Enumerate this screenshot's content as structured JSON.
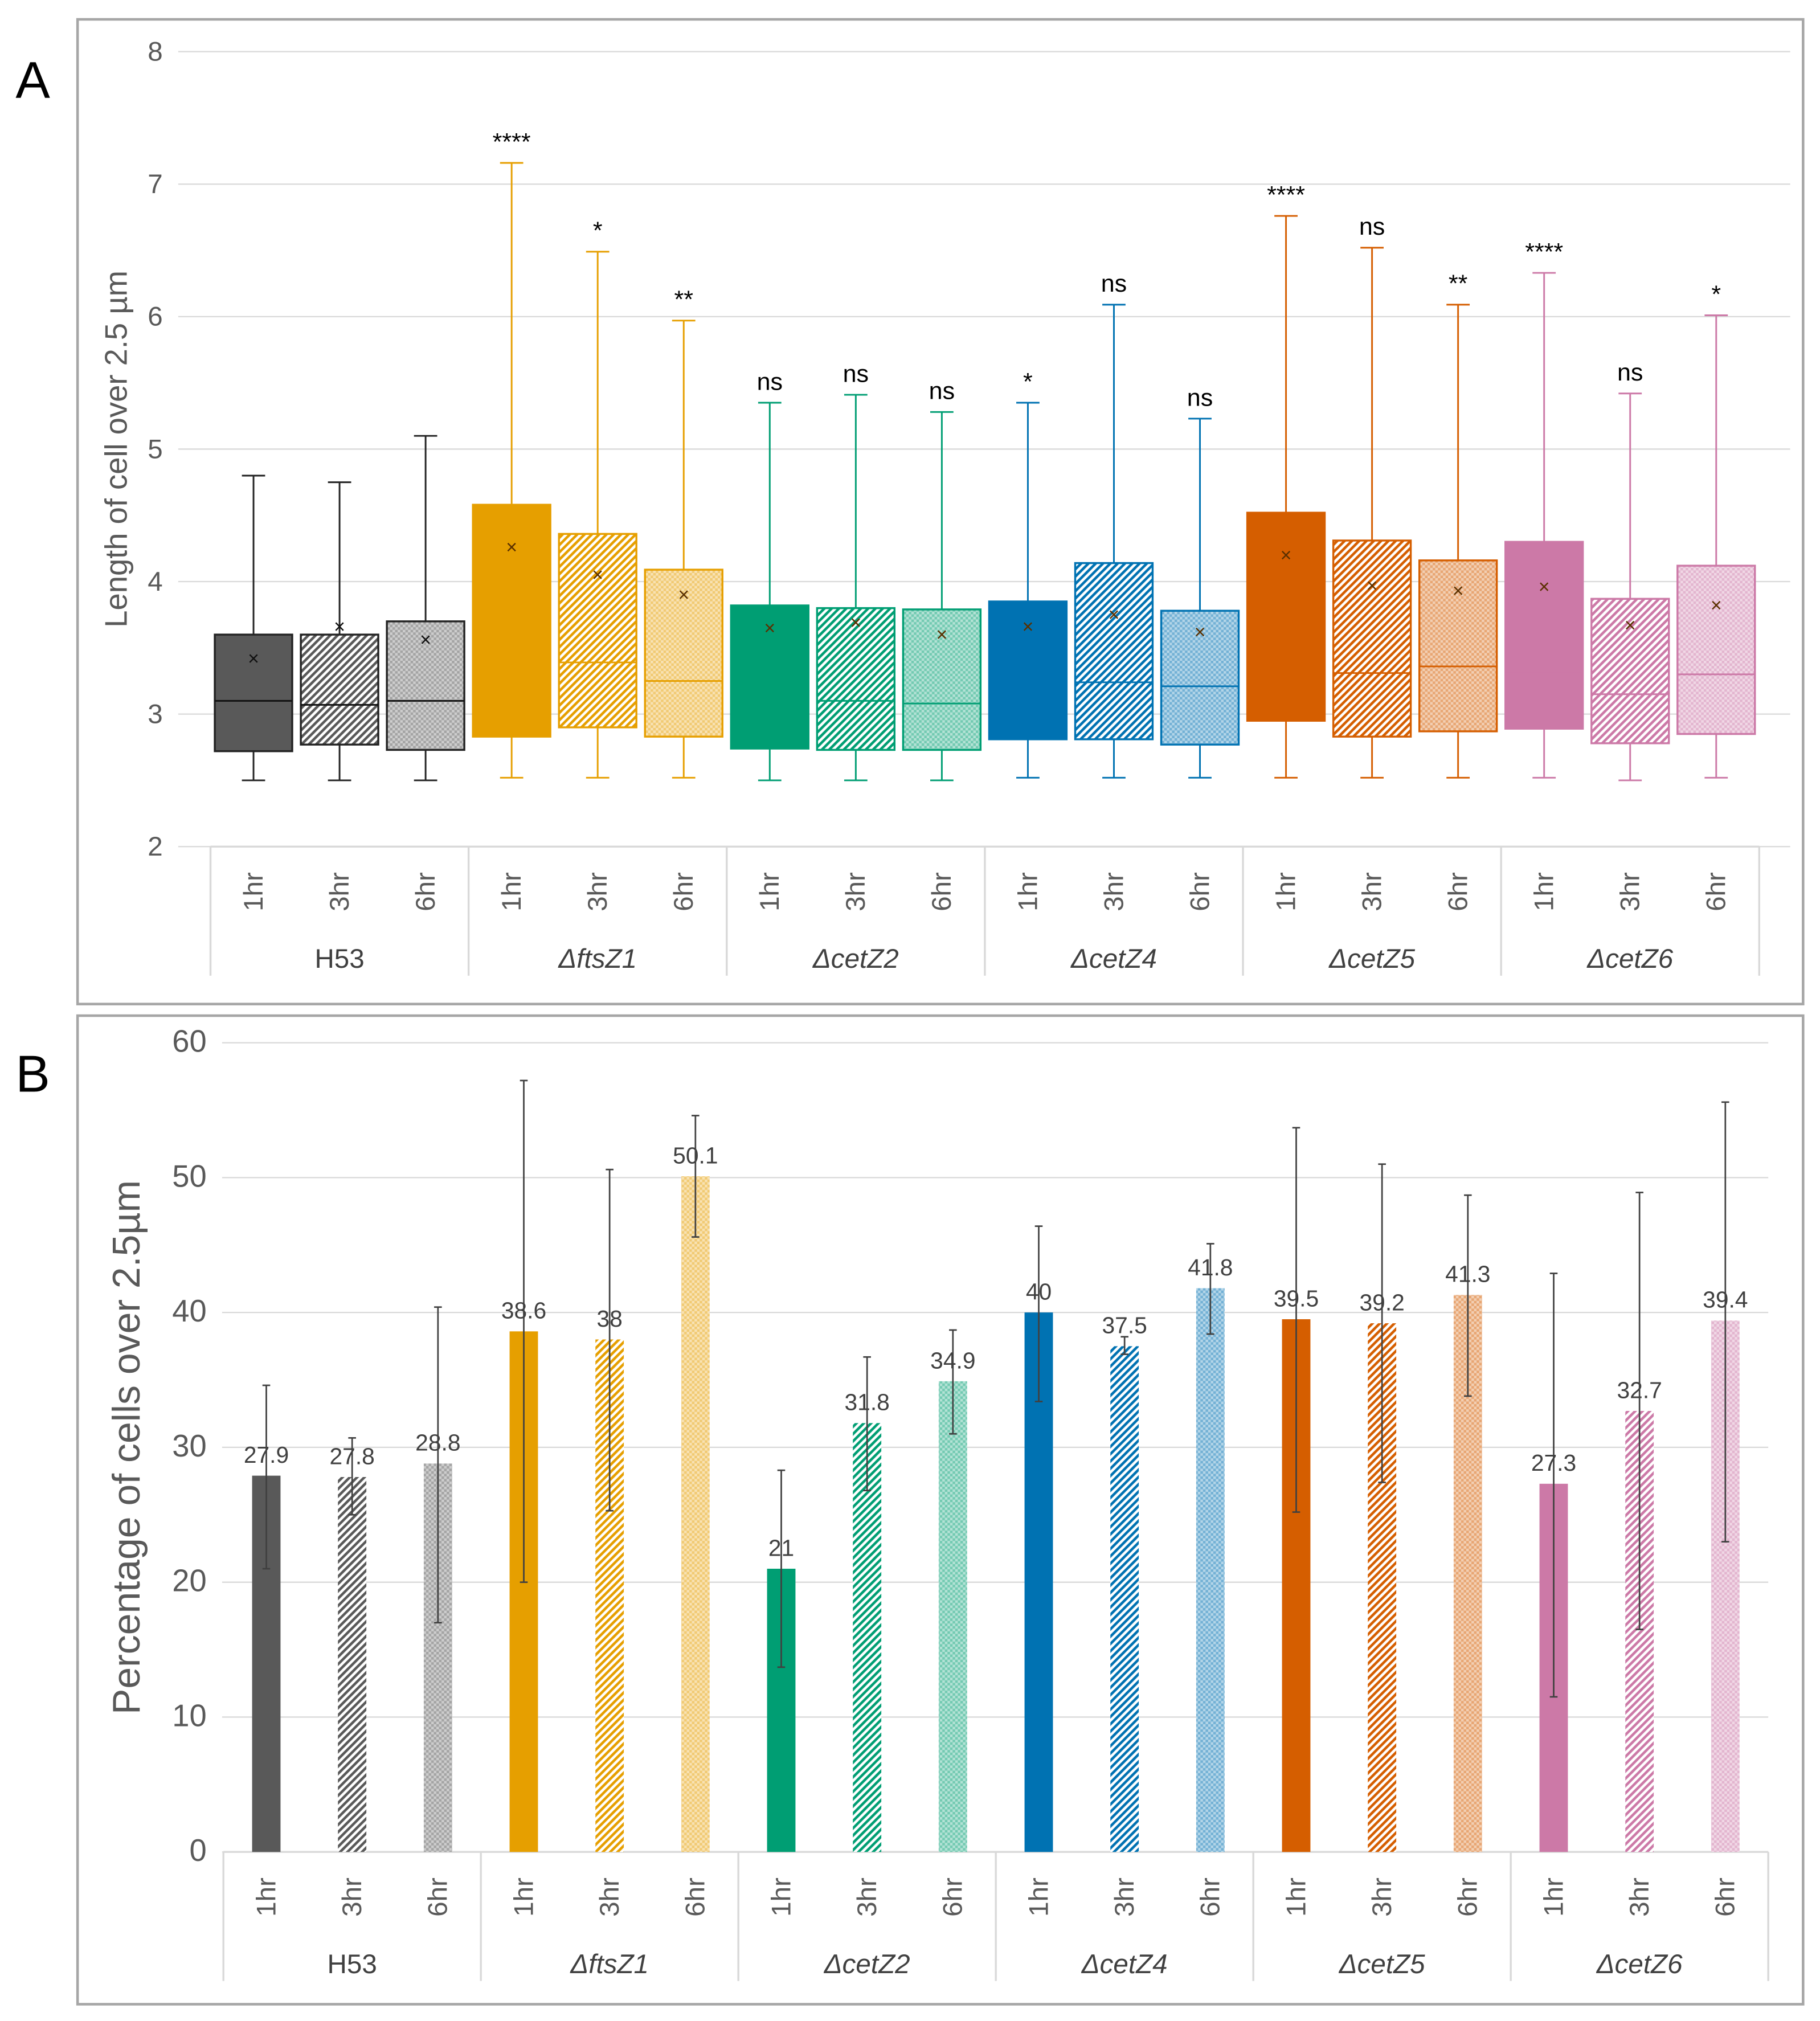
{
  "chart_data": [
    {
      "type": "box",
      "panel_label": "A",
      "ylabel": "Length of cell over 2.5 µm",
      "ylim": [
        2,
        8
      ],
      "yticks": [
        2,
        3,
        4,
        5,
        6,
        7,
        8
      ],
      "grid": true,
      "groups": [
        "H53",
        "ΔftsZ1",
        "ΔcetZ2",
        "ΔcetZ4",
        "ΔcetZ5",
        "ΔcetZ6"
      ],
      "group_italic": [
        false,
        true,
        true,
        true,
        true,
        true
      ],
      "timepoints": [
        "1hr",
        "3hr",
        "6hr"
      ],
      "colors": [
        "#595959",
        "#E69F00",
        "#009E73",
        "#0072B2",
        "#D55E00",
        "#CC79A7"
      ],
      "boxes": [
        {
          "min": 2.5,
          "q1": 2.72,
          "median": 3.1,
          "q3": 3.6,
          "max": 4.8,
          "mean": 3.42,
          "sig": ""
        },
        {
          "min": 2.5,
          "q1": 2.77,
          "median": 3.07,
          "q3": 3.6,
          "max": 4.75,
          "mean": 3.66,
          "sig": ""
        },
        {
          "min": 2.5,
          "q1": 2.73,
          "median": 3.1,
          "q3": 3.7,
          "max": 5.1,
          "mean": 3.56,
          "sig": ""
        },
        {
          "min": 2.52,
          "q1": 2.83,
          "median": 3.5,
          "q3": 4.58,
          "max": 7.16,
          "mean": 4.26,
          "sig": "****"
        },
        {
          "min": 2.52,
          "q1": 2.9,
          "median": 3.39,
          "q3": 4.36,
          "max": 6.49,
          "mean": 4.05,
          "sig": "*"
        },
        {
          "min": 2.52,
          "q1": 2.83,
          "median": 3.25,
          "q3": 4.09,
          "max": 5.97,
          "mean": 3.9,
          "sig": "**"
        },
        {
          "min": 2.5,
          "q1": 2.74,
          "median": 3.17,
          "q3": 3.82,
          "max": 5.35,
          "mean": 3.65,
          "sig": "ns"
        },
        {
          "min": 2.5,
          "q1": 2.73,
          "median": 3.1,
          "q3": 3.8,
          "max": 5.41,
          "mean": 3.69,
          "sig": "ns"
        },
        {
          "min": 2.5,
          "q1": 2.73,
          "median": 3.08,
          "q3": 3.79,
          "max": 5.28,
          "mean": 3.6,
          "sig": "ns"
        },
        {
          "min": 2.52,
          "q1": 2.81,
          "median": 3.21,
          "q3": 3.85,
          "max": 5.35,
          "mean": 3.66,
          "sig": "*"
        },
        {
          "min": 2.52,
          "q1": 2.81,
          "median": 3.24,
          "q3": 4.14,
          "max": 6.09,
          "mean": 3.75,
          "sig": "ns"
        },
        {
          "min": 2.52,
          "q1": 2.77,
          "median": 3.21,
          "q3": 3.78,
          "max": 5.23,
          "mean": 3.62,
          "sig": "ns"
        },
        {
          "min": 2.52,
          "q1": 2.95,
          "median": 3.5,
          "q3": 4.52,
          "max": 6.76,
          "mean": 4.2,
          "sig": "****"
        },
        {
          "min": 2.52,
          "q1": 2.83,
          "median": 3.31,
          "q3": 4.31,
          "max": 6.52,
          "mean": 3.97,
          "sig": "ns"
        },
        {
          "min": 2.52,
          "q1": 2.87,
          "median": 3.36,
          "q3": 4.16,
          "max": 6.09,
          "mean": 3.93,
          "sig": "**"
        },
        {
          "min": 2.52,
          "q1": 2.89,
          "median": 3.32,
          "q3": 4.3,
          "max": 6.33,
          "mean": 3.96,
          "sig": "****"
        },
        {
          "min": 2.5,
          "q1": 2.78,
          "median": 3.15,
          "q3": 3.87,
          "max": 5.42,
          "mean": 3.67,
          "sig": "ns"
        },
        {
          "min": 2.52,
          "q1": 2.85,
          "median": 3.3,
          "q3": 4.12,
          "max": 6.01,
          "mean": 3.82,
          "sig": "*"
        }
      ]
    },
    {
      "type": "bar",
      "panel_label": "B",
      "ylabel": "Percentage of cells over 2.5µm",
      "ylim": [
        0,
        60
      ],
      "yticks": [
        0,
        10,
        20,
        30,
        40,
        50,
        60
      ],
      "grid": true,
      "groups": [
        "H53",
        "ΔftsZ1",
        "ΔcetZ2",
        "ΔcetZ4",
        "ΔcetZ5",
        "ΔcetZ6"
      ],
      "group_italic": [
        false,
        true,
        true,
        true,
        true,
        true
      ],
      "timepoints": [
        "1hr",
        "3hr",
        "6hr"
      ],
      "colors": [
        "#595959",
        "#E69F00",
        "#009E73",
        "#0072B2",
        "#D55E00",
        "#CC79A7"
      ],
      "values": [
        27.9,
        27.8,
        28.8,
        38.6,
        38,
        50.1,
        21,
        31.8,
        34.9,
        40,
        37.5,
        41.8,
        39.5,
        39.2,
        41.3,
        27.3,
        32.7,
        39.4
      ],
      "error_low": [
        21,
        25,
        17,
        20,
        25.3,
        45.6,
        13.7,
        26.8,
        31,
        33.4,
        36.9,
        38.4,
        25.2,
        27.4,
        33.8,
        11.5,
        16.5,
        23
      ],
      "error_high": [
        34.6,
        30.7,
        40.4,
        57.2,
        50.6,
        54.6,
        28.3,
        36.7,
        38.7,
        46.4,
        38.2,
        45.1,
        53.7,
        51,
        48.7,
        42.9,
        48.9,
        55.6
      ]
    }
  ]
}
